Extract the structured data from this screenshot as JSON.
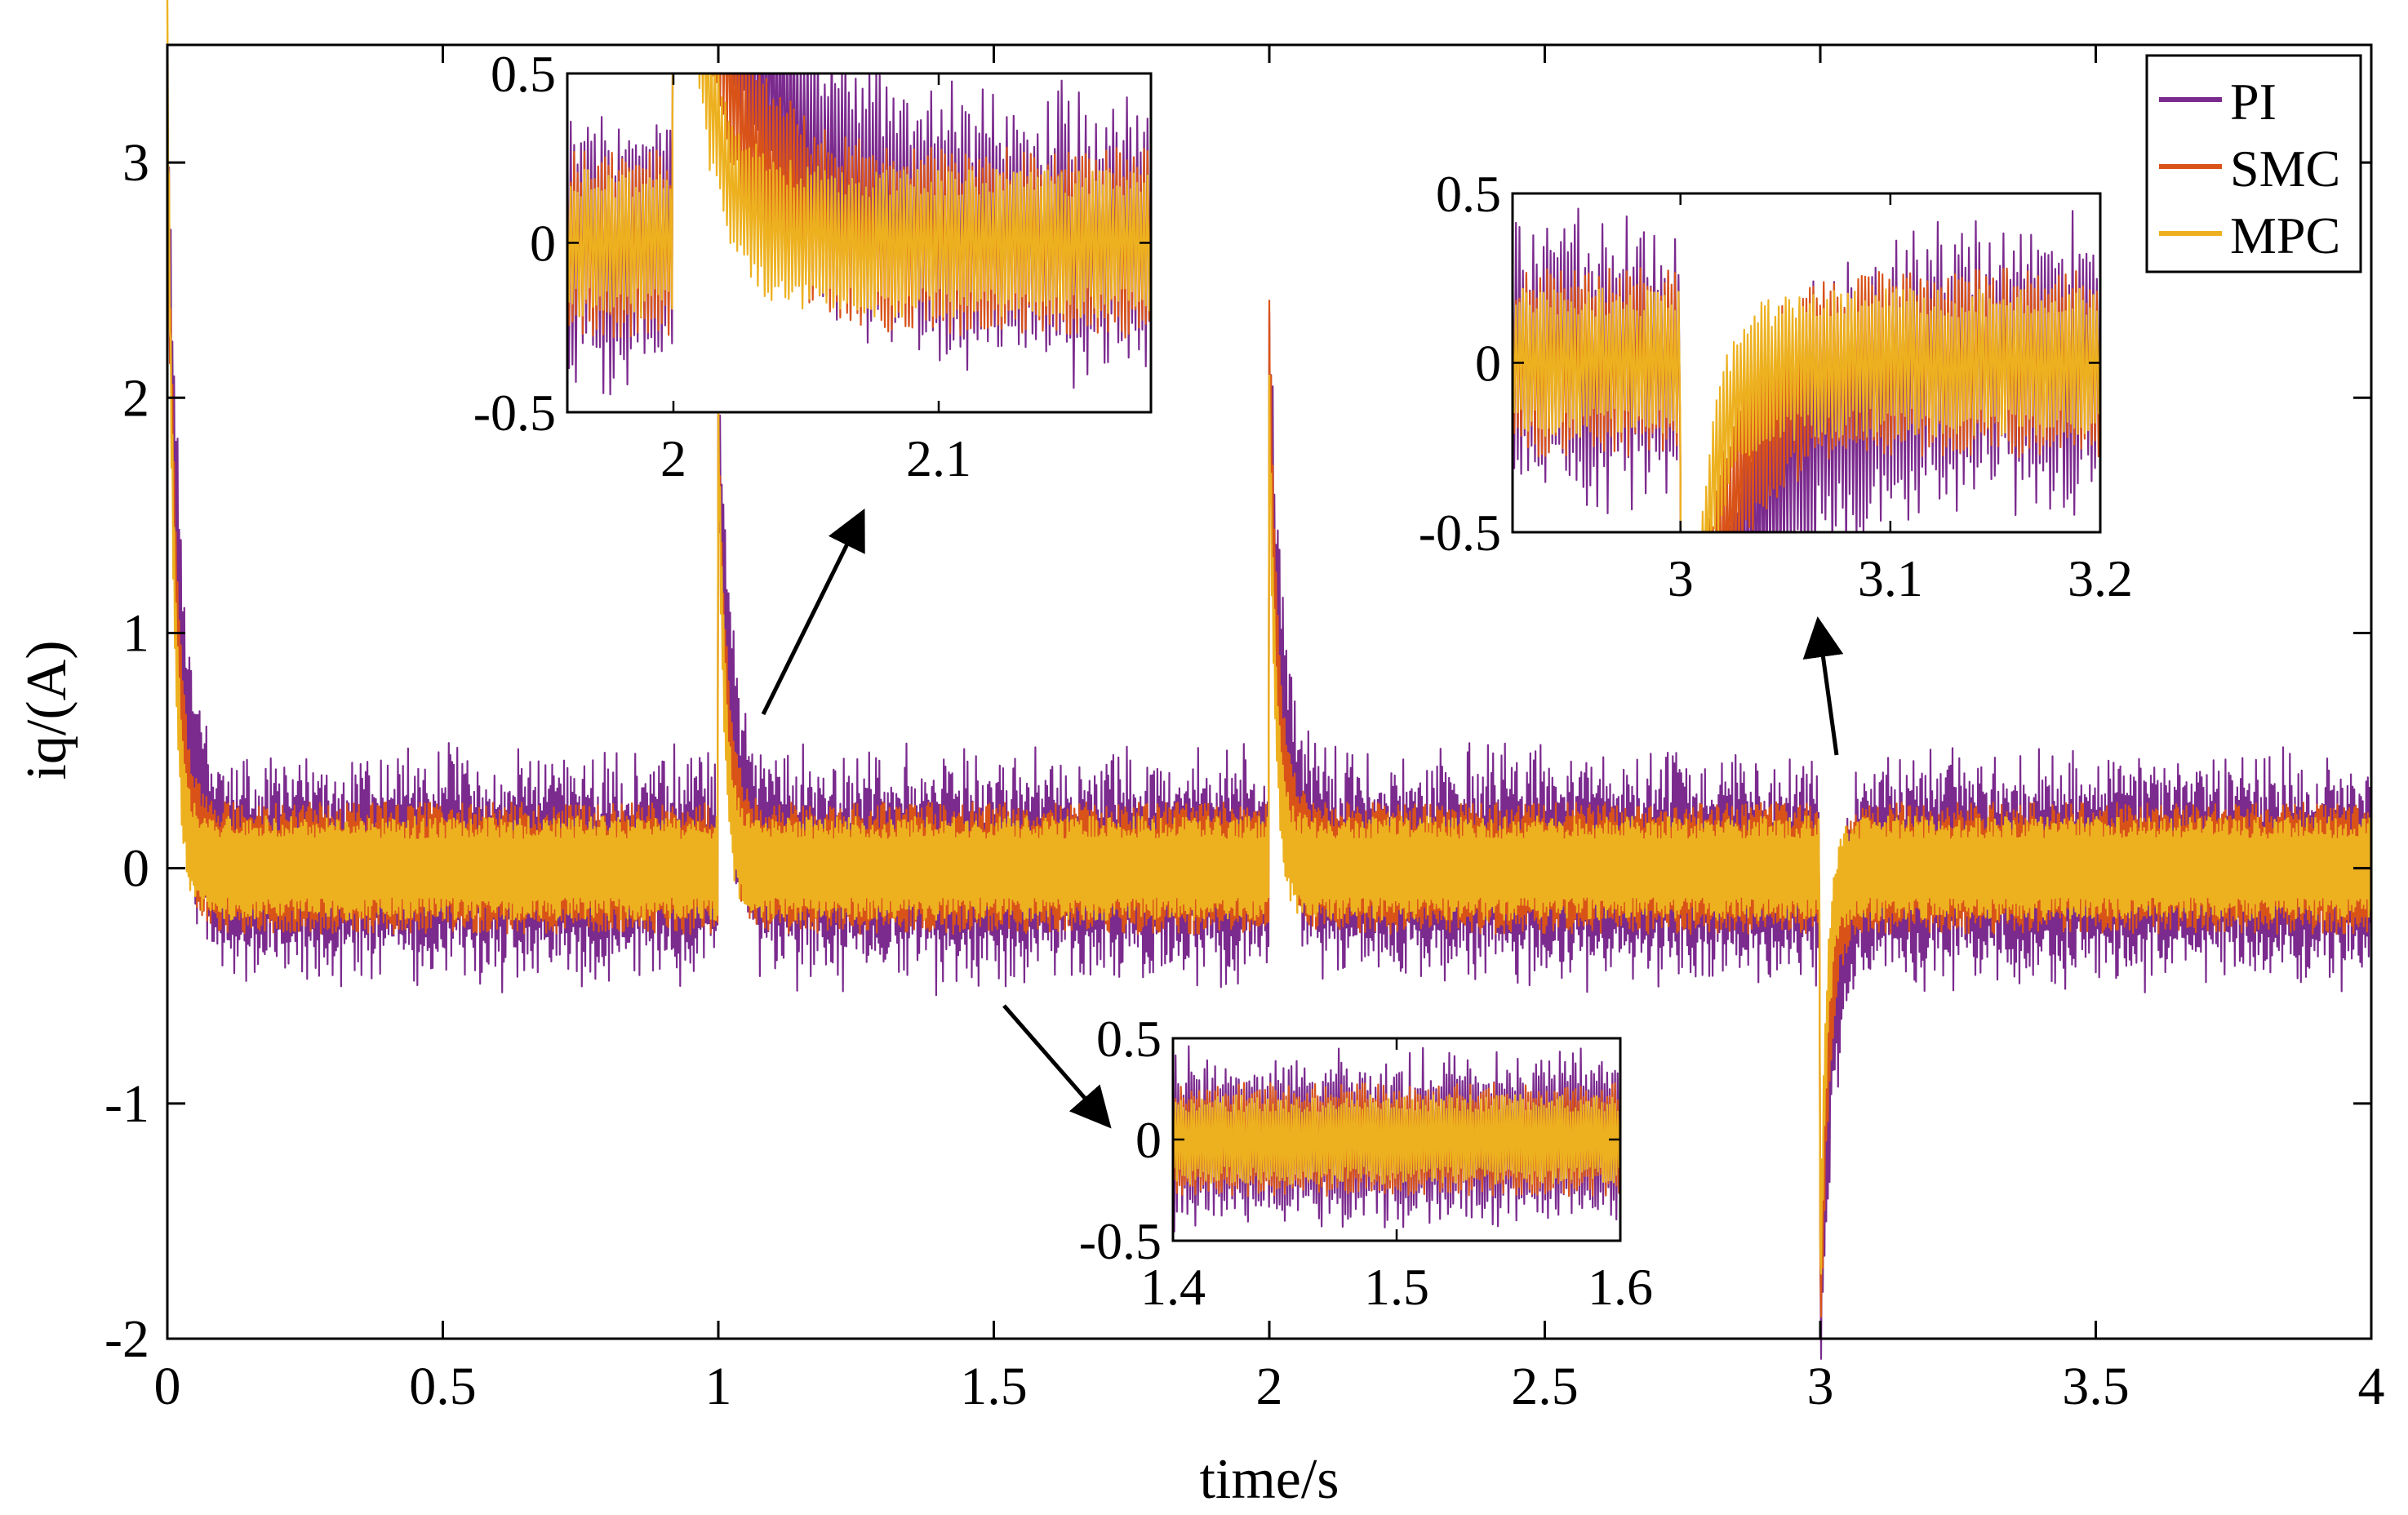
{
  "chart_data": [
    {
      "id": "main",
      "type": "line",
      "title": "",
      "xlabel": "time/s",
      "ylabel": "iq/(A)",
      "xlim": [
        0,
        4
      ],
      "ylim": [
        -2,
        3.5
      ],
      "xticks": [
        0,
        0.5,
        1,
        1.5,
        2,
        2.5,
        3,
        3.5,
        4
      ],
      "xtick_labels": [
        "0",
        "0.5",
        "1",
        "1.5",
        "2",
        "2.5",
        "3",
        "3.5",
        "4"
      ],
      "yticks": [
        -2,
        -1,
        0,
        1,
        2,
        3
      ],
      "ytick_labels": [
        "-2",
        "-1",
        "0",
        "1",
        "2",
        "3"
      ],
      "legend": {
        "position": "top-right",
        "entries": [
          "PI",
          "SMC",
          "MPC"
        ]
      },
      "series": [
        {
          "name": "PI",
          "color": "#7B2A8E",
          "steady_band": [
            -0.42,
            0.42
          ],
          "peaks": [
            {
              "x": 0.0,
              "y": 3.1
            },
            {
              "x": 1.0,
              "y": 1.9
            },
            {
              "x": 2.0,
              "y": 2.1
            },
            {
              "x": 3.0,
              "y": -1.95
            }
          ]
        },
        {
          "name": "SMC",
          "color": "#D95319",
          "steady_band": [
            -0.28,
            0.28
          ],
          "peaks": [
            {
              "x": 0.0,
              "y": 3.2
            },
            {
              "x": 1.0,
              "y": 1.8
            },
            {
              "x": 2.0,
              "y": 2.2
            },
            {
              "x": 3.0,
              "y": -1.9
            }
          ]
        },
        {
          "name": "MPC",
          "color": "#EDB120",
          "steady_band": [
            -0.22,
            0.22
          ],
          "peaks": [
            {
              "x": 0.0,
              "y": 3.55
            },
            {
              "x": 1.0,
              "y": 1.9
            },
            {
              "x": 2.0,
              "y": 1.95
            },
            {
              "x": 3.0,
              "y": -1.8
            }
          ]
        }
      ]
    },
    {
      "id": "inset_2s",
      "type": "line",
      "xlim": [
        1.96,
        2.18
      ],
      "ylim": [
        -0.5,
        0.5
      ],
      "xticks": [
        2,
        2.1
      ],
      "xtick_labels": [
        "2",
        "2.1"
      ],
      "yticks": [
        -0.5,
        0,
        0.5
      ],
      "ytick_labels": [
        "-0.5",
        "0",
        "0.5"
      ],
      "event_time": 2.0,
      "recovery_time": 2.03,
      "bands": {
        "PI": 0.38,
        "SMC": 0.28,
        "MPC": 0.22
      }
    },
    {
      "id": "inset_3s",
      "type": "line",
      "xlim": [
        2.92,
        3.2
      ],
      "ylim": [
        -0.5,
        0.5
      ],
      "xticks": [
        3,
        3.1,
        3.2
      ],
      "xtick_labels": [
        "3",
        "3.1",
        "3.2"
      ],
      "yticks": [
        -0.5,
        0,
        0.5
      ],
      "ytick_labels": [
        "-0.5",
        "0",
        "0.5"
      ],
      "event_time": 3.0,
      "recovery_time": 3.03,
      "bands": {
        "PI": 0.38,
        "SMC": 0.28,
        "MPC": 0.22
      }
    },
    {
      "id": "inset_steady",
      "type": "line",
      "xlim": [
        1.4,
        1.6
      ],
      "ylim": [
        -0.5,
        0.5
      ],
      "xticks": [
        1.4,
        1.5,
        1.6
      ],
      "xtick_labels": [
        "1.4",
        "1.5",
        "1.6"
      ],
      "yticks": [
        -0.5,
        0,
        0.5
      ],
      "ytick_labels": [
        "-0.5",
        "0",
        "0.5"
      ],
      "bands": {
        "PI": 0.38,
        "SMC": 0.28,
        "MPC": 0.22
      }
    }
  ]
}
